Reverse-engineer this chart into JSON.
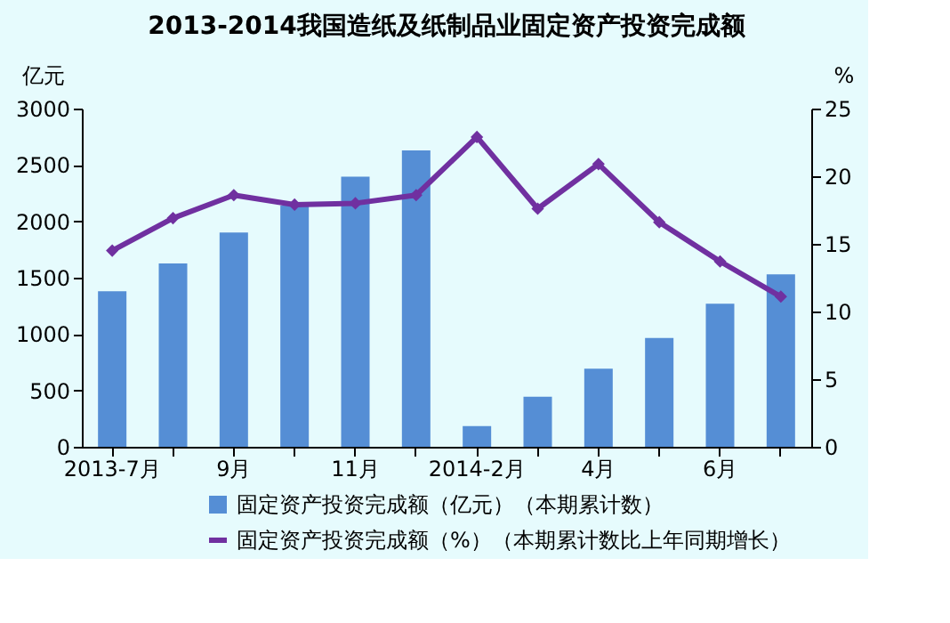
{
  "chart_data": {
    "type": "bar",
    "title": "2013-2014我国造纸及纸制品业固定资产投资完成额",
    "categories": [
      "2013-7月",
      null,
      "9月",
      null,
      "11月",
      null,
      "2014-2月",
      null,
      "4月",
      null,
      "6月",
      null
    ],
    "series": [
      {
        "name": "固定资产投资完成额（亿元）（本期累计数）",
        "color": "#558ed5",
        "values": [
          1379,
          1626,
          1901,
          2139,
          2396,
          2629,
          183,
          444,
          692,
          966,
          1269,
          1530
        ]
      },
      {
        "name": "固定资产投资完成额（%）（本期累计数比上年同期增长）",
        "type": "line",
        "axis": "y2",
        "color": "#7030a0",
        "marker": "diamond",
        "values": [
          14.5,
          16.9,
          18.6,
          17.9,
          18.0,
          18.6,
          22.9,
          17.6,
          20.9,
          16.6,
          13.7,
          11.1
        ]
      }
    ],
    "ylabel": "亿元",
    "y2label": "%",
    "ylim": [
      0,
      3000
    ],
    "yticks": [
      0,
      500,
      1000,
      1500,
      2000,
      2500,
      3000
    ],
    "y2lim": [
      0,
      25
    ],
    "y2ticks": [
      0,
      5,
      10,
      15,
      20,
      25
    ],
    "grid": false,
    "legend": "bottom"
  }
}
